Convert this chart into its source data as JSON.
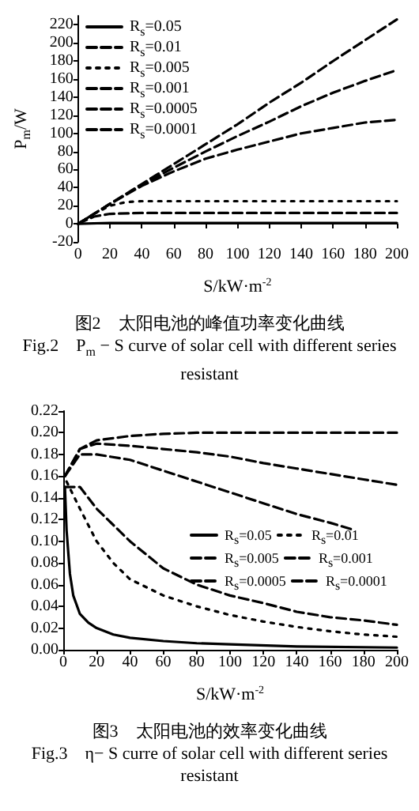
{
  "chart_data": [
    {
      "type": "line",
      "xlabel": "S/kW·m$^{-2}$",
      "ylabel": "P$_{m}$/W",
      "xlim": [
        0,
        200
      ],
      "xticks": [
        0,
        20,
        40,
        60,
        80,
        100,
        120,
        140,
        160,
        180,
        200
      ],
      "ylim": [
        -20,
        230
      ],
      "yticks": [
        -20,
        0,
        20,
        40,
        60,
        80,
        100,
        120,
        140,
        160,
        180,
        200,
        220
      ],
      "grid": false,
      "legend": "top left",
      "marker": "none",
      "annotations": [
        "图2　太阳电池的峰值功率变化曲线",
        "Fig.2　P$_{m}$ − S curve of solar cell with different series resistant"
      ],
      "series": [
        {
          "name": "R$_{s}$=0.05",
          "color": "#000000",
          "line_style": "solid",
          "x": [
            0,
            20,
            40,
            60,
            80,
            100,
            120,
            140,
            160,
            180,
            200
          ],
          "values": [
            0,
            1,
            1,
            1,
            1,
            1,
            1,
            1,
            1,
            1,
            1
          ]
        },
        {
          "name": "R$_{s}$=0.01",
          "color": "#000000",
          "line_style": "dashed",
          "x": [
            0,
            10,
            20,
            40,
            60,
            80,
            100,
            120,
            140,
            160,
            180,
            200
          ],
          "values": [
            0,
            8,
            11,
            12,
            12,
            12,
            12,
            12,
            12,
            12,
            12,
            12
          ]
        },
        {
          "name": "R$_{s}$=0.005",
          "color": "#000000",
          "line_style": "dotted",
          "x": [
            0,
            10,
            20,
            30,
            40,
            60,
            80,
            100,
            120,
            140,
            160,
            180,
            200
          ],
          "values": [
            0,
            11,
            20,
            24,
            25,
            25,
            25,
            25,
            25,
            25,
            25,
            25,
            25
          ]
        },
        {
          "name": "R$_{s}$=0.001",
          "color": "#000000",
          "line_style": "dashed",
          "x": [
            0,
            20,
            40,
            60,
            80,
            100,
            120,
            140,
            160,
            180,
            200
          ],
          "values": [
            0,
            22,
            43,
            62,
            80,
            97,
            113,
            130,
            145,
            158,
            170
          ]
        },
        {
          "name": "R$_{s}$=0.0005",
          "color": "#000000",
          "line_style": "dashed",
          "x": [
            0,
            20,
            40,
            60,
            80,
            100,
            120,
            140,
            160,
            180,
            200
          ],
          "values": [
            0,
            22,
            42,
            58,
            72,
            82,
            91,
            100,
            106,
            112,
            115
          ]
        },
        {
          "name": "R$_{s}$=0.0001",
          "color": "#000000",
          "line_style": "dashed",
          "x": [
            0,
            20,
            40,
            60,
            80,
            100,
            120,
            140,
            160,
            180,
            200
          ],
          "values": [
            0,
            22,
            44,
            66,
            88,
            110,
            134,
            156,
            180,
            203,
            226
          ]
        }
      ]
    },
    {
      "type": "line",
      "xlabel": "S/kW·m$^{-2}$",
      "xlim": [
        0,
        200
      ],
      "xticks": [
        0,
        20,
        40,
        60,
        80,
        100,
        120,
        140,
        160,
        180,
        200
      ],
      "ylim": [
        0,
        0.22
      ],
      "yticks": [
        {
          "value": 0,
          "label": "0.00"
        },
        {
          "value": 0.02,
          "label": "0.02"
        },
        {
          "value": 0.04,
          "label": "0.04"
        },
        {
          "value": 0.06,
          "label": "0.06"
        },
        {
          "value": 0.08,
          "label": "0.08"
        },
        {
          "value": 0.1,
          "label": "0.10"
        },
        {
          "value": 0.12,
          "label": "0.12"
        },
        {
          "value": 0.14,
          "label": "0.14"
        },
        {
          "value": 0.16,
          "label": "0.16"
        },
        {
          "value": 0.18,
          "label": "0.18"
        },
        {
          "value": 0.2,
          "label": "0.20"
        },
        {
          "value": 0.22,
          "label": "0.22"
        }
      ],
      "grid": false,
      "legend": "right",
      "marker": "none",
      "annotations": [
        "图3　太阳电池的效率变化曲线",
        "Fig.3　η− S curre of solar cell with different series resistant"
      ],
      "series": [
        {
          "name": "R$_{s}$=0.05",
          "color": "#000000",
          "line_style": "solid",
          "x": [
            1,
            2,
            4,
            6,
            10,
            15,
            20,
            30,
            40,
            60,
            80,
            100,
            140,
            200
          ],
          "values": [
            0.15,
            0.11,
            0.07,
            0.05,
            0.033,
            0.025,
            0.02,
            0.014,
            0.011,
            0.008,
            0.006,
            0.005,
            0.003,
            0.002
          ]
        },
        {
          "name": "R$_{s}$=0.01",
          "color": "#000000",
          "line_style": "dotted",
          "x": [
            2,
            10,
            20,
            30,
            40,
            60,
            80,
            100,
            120,
            140,
            160,
            180,
            200
          ],
          "values": [
            0.155,
            0.13,
            0.1,
            0.08,
            0.065,
            0.05,
            0.04,
            0.032,
            0.026,
            0.021,
            0.017,
            0.014,
            0.012
          ]
        },
        {
          "name": "R$_{s}$=0.005",
          "color": "#000000",
          "line_style": "dashed",
          "x": [
            1,
            10,
            20,
            40,
            60,
            80,
            100,
            120,
            140,
            160,
            180,
            200
          ],
          "values": [
            0.15,
            0.15,
            0.13,
            0.1,
            0.075,
            0.06,
            0.05,
            0.043,
            0.035,
            0.03,
            0.027,
            0.023
          ]
        },
        {
          "name": "R$_{s}$=0.001",
          "color": "#000000",
          "line_style": "dashed",
          "x": [
            1,
            10,
            20,
            40,
            60,
            80,
            100,
            120,
            140,
            160,
            175
          ],
          "values": [
            0.16,
            0.18,
            0.18,
            0.175,
            0.165,
            0.155,
            0.145,
            0.135,
            0.125,
            0.117,
            0.11
          ]
        },
        {
          "name": "R$_{s}$=0.0005",
          "color": "#000000",
          "line_style": "dashed",
          "x": [
            1,
            10,
            20,
            40,
            60,
            80,
            100,
            120,
            140,
            160,
            180,
            200
          ],
          "values": [
            0.16,
            0.185,
            0.19,
            0.188,
            0.185,
            0.182,
            0.178,
            0.172,
            0.167,
            0.162,
            0.157,
            0.152
          ]
        },
        {
          "name": "R$_{s}$=0.0001",
          "color": "#000000",
          "line_style": "dashed",
          "x": [
            1,
            10,
            20,
            40,
            60,
            80,
            100,
            120,
            140,
            160,
            180,
            200
          ],
          "values": [
            0.16,
            0.185,
            0.193,
            0.197,
            0.199,
            0.2,
            0.2,
            0.2,
            0.2,
            0.2,
            0.2,
            0.2
          ]
        }
      ]
    }
  ]
}
